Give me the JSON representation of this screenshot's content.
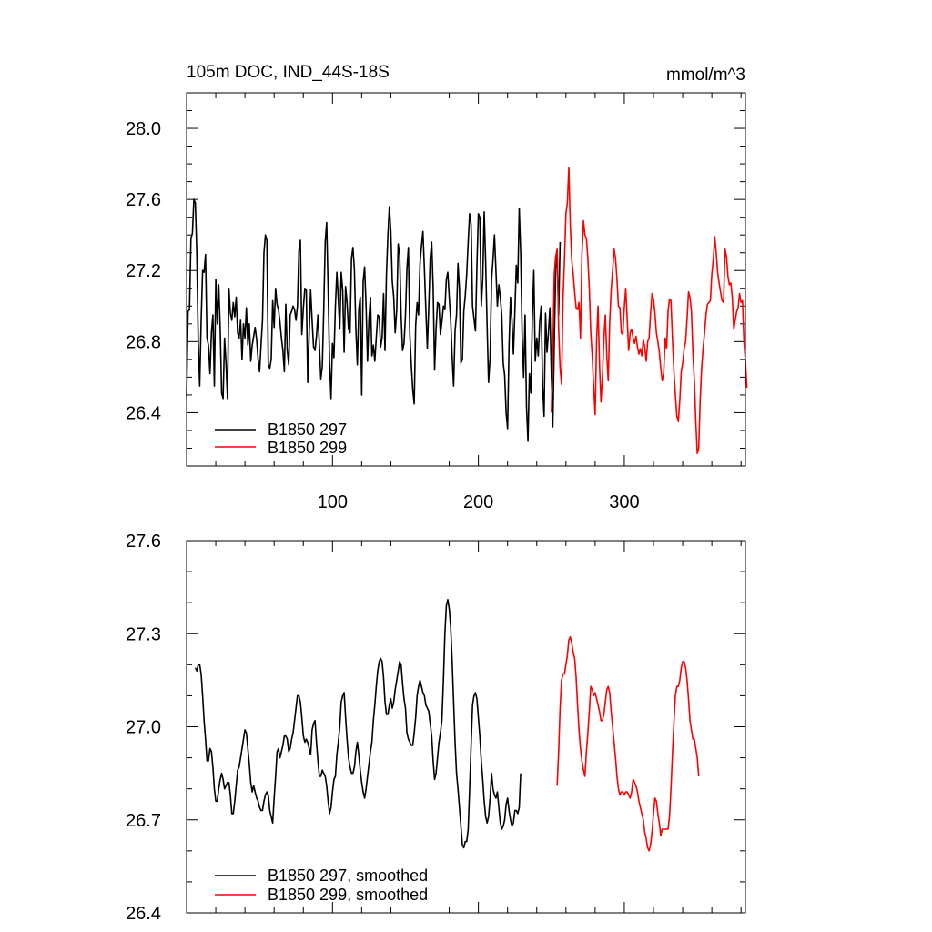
{
  "chart_data": [
    {
      "type": "line",
      "title": "105m DOC, IND_44S-18S",
      "units": "mmol/m^3",
      "xlim": [
        0,
        383
      ],
      "ylim": [
        26.1,
        28.2
      ],
      "x_ticks": [
        100,
        200,
        300
      ],
      "y_ticks": [
        26.4,
        26.8,
        27.2,
        27.6,
        28.0
      ],
      "y_tick_labels": [
        "26.4",
        "26.8",
        "27.2",
        "27.6",
        "28.0"
      ],
      "legend": "bottom-left",
      "series": [
        {
          "name": "B1850 297",
          "color": "#000000",
          "x_start": 0,
          "values": [
            26.49,
            26.97,
            26.98,
            27.38,
            27.41,
            27.6,
            27.58,
            27.3,
            26.8,
            26.55,
            26.92,
            27.2,
            27.19,
            27.29,
            26.82,
            26.78,
            26.62,
            26.85,
            26.95,
            26.55,
            27.15,
            26.9,
            27.12,
            26.88,
            26.51,
            26.48,
            26.82,
            26.68,
            26.48,
            27.1,
            26.96,
            26.92,
            27.02,
            26.94,
            27.05,
            26.85,
            26.82,
            26.92,
            26.7,
            26.9,
            26.82,
            26.99,
            26.78,
            26.9,
            26.69,
            26.78,
            26.83,
            26.88,
            26.81,
            26.7,
            26.63,
            26.78,
            26.92,
            27.3,
            27.4,
            27.37,
            26.67,
            26.65,
            26.7,
            27.03,
            26.88,
            27.1,
            27.01,
            26.98,
            26.91,
            26.82,
            26.75,
            26.63,
            27.01,
            26.75,
            26.67,
            26.95,
            26.97,
            27.0,
            26.98,
            26.92,
            27.0,
            27.31,
            27.37,
            26.84,
            26.99,
            27.1,
            27.09,
            26.57,
            26.85,
            27.09,
            26.92,
            26.77,
            26.75,
            26.83,
            26.95,
            26.78,
            26.59,
            26.66,
            26.98,
            27.36,
            27.47,
            27.1,
            26.68,
            26.48,
            26.79,
            26.71,
            27.0,
            27.19,
            27.04,
            26.87,
            27.19,
            27.09,
            26.74,
            27.11,
            27.02,
            26.87,
            26.85,
            27.27,
            27.33,
            27.2,
            26.87,
            26.67,
            26.98,
            27.05,
            26.5,
            27.14,
            27.22,
            27.0,
            26.69,
            26.93,
            27.05,
            26.72,
            26.78,
            26.69,
            26.82,
            26.95,
            26.94,
            26.77,
            26.82,
            27.07,
            26.75,
            27.18,
            27.4,
            27.56,
            27.42,
            27.14,
            27.05,
            26.85,
            26.98,
            27.35,
            27.29,
            26.95,
            26.75,
            26.79,
            26.95,
            27.21,
            27.33,
            26.84,
            26.67,
            26.53,
            26.45,
            26.89,
            27.02,
            26.95,
            27.24,
            27.34,
            27.42,
            27.21,
            26.98,
            26.76,
            27.0,
            27.27,
            27.36,
            27.11,
            26.64,
            26.87,
            27.02,
            27.01,
            26.84,
            26.91,
            27.0,
            26.98,
            27.15,
            27.19,
            27.05,
            26.92,
            26.71,
            26.55,
            26.86,
            26.95,
            27.24,
            27.1,
            26.68,
            26.7,
            26.97,
            27.06,
            27.18,
            27.36,
            27.52,
            27.46,
            27.0,
            26.93,
            26.86,
            27.22,
            27.52,
            27.5,
            27.0,
            27.15,
            27.53,
            27.25,
            26.89,
            26.57,
            26.71,
            27.15,
            27.26,
            27.4,
            27.2,
            27.0,
            27.12,
            27.05,
            26.95,
            26.68,
            26.61,
            26.4,
            26.31,
            26.78,
            27.05,
            26.92,
            26.73,
            26.97,
            27.23,
            27.13,
            27.55,
            27.3,
            26.84,
            26.6,
            26.95,
            26.43,
            26.24,
            26.62,
            26.51,
            26.93,
            27.2,
            26.69,
            26.82,
            26.72,
            26.91,
            27.0,
            26.55,
            26.38,
            26.96,
            26.74,
            26.85,
            26.99,
            26.61,
            26.32,
            26.79,
            27.21,
            27.29,
            26.95,
            27.36
          ]
        },
        {
          "name": "B1850 299",
          "color": "#ff0000",
          "x_start": 250,
          "values": [
            26.4,
            26.73,
            27.18,
            27.28,
            27.32,
            26.87,
            26.65,
            26.56,
            27.04,
            27.26,
            27.52,
            27.58,
            27.78,
            27.46,
            27.26,
            27.18,
            27.08,
            26.99,
            26.98,
            27.02,
            26.82,
            27.29,
            27.48,
            27.4,
            27.38,
            27.27,
            27.1,
            26.85,
            26.72,
            26.54,
            26.39,
            26.81,
            27.0,
            26.67,
            26.46,
            26.6,
            26.82,
            26.95,
            26.72,
            26.58,
            26.91,
            27.09,
            27.2,
            27.32,
            27.27,
            27.15,
            27.0,
            26.99,
            26.85,
            26.84,
            26.99,
            27.1,
            26.93,
            26.75,
            26.85,
            26.87,
            26.82,
            26.79,
            26.83,
            26.77,
            26.73,
            26.76,
            26.72,
            26.81,
            26.77,
            26.69,
            26.8,
            26.82,
            26.96,
            27.07,
            27.04,
            26.96,
            26.85,
            26.8,
            26.74,
            26.65,
            26.58,
            26.62,
            26.82,
            26.76,
            26.97,
            27.04,
            27.03,
            26.82,
            26.64,
            26.5,
            26.38,
            26.35,
            26.47,
            26.63,
            26.68,
            26.76,
            26.8,
            26.93,
            27.08,
            27.05,
            26.97,
            26.74,
            26.58,
            26.35,
            26.17,
            26.2,
            26.47,
            26.65,
            26.76,
            26.85,
            26.95,
            27.01,
            27.02,
            27.03,
            27.18,
            27.26,
            27.39,
            27.3,
            27.19,
            27.13,
            27.08,
            27.03,
            27.02,
            27.32,
            27.28,
            27.17,
            27.12,
            27.13,
            27.05,
            26.87,
            26.92,
            26.97,
            26.99,
            27.07,
            27.02,
            27.03,
            26.8,
            26.69,
            26.54
          ]
        }
      ]
    },
    {
      "type": "line",
      "xlim": [
        0,
        383
      ],
      "ylim": [
        26.4,
        27.6
      ],
      "x_ticks": [
        100,
        200,
        300
      ],
      "y_ticks": [
        26.4,
        26.7,
        27.0,
        27.3,
        27.6
      ],
      "y_tick_labels": [
        "26.4",
        "26.7",
        "27.0",
        "27.3",
        "27.6"
      ],
      "legend": "bottom-left",
      "series": [
        {
          "name": "B1850 297, smoothed",
          "color": "#000000",
          "x_start": 6,
          "values": [
            27.19,
            27.18,
            27.2,
            27.2,
            27.17,
            27.1,
            27.02,
            26.96,
            26.89,
            26.89,
            26.93,
            26.92,
            26.87,
            26.8,
            26.76,
            26.76,
            26.8,
            26.83,
            26.85,
            26.83,
            26.8,
            26.81,
            26.82,
            26.82,
            26.78,
            26.72,
            26.72,
            26.76,
            26.81,
            26.86,
            26.87,
            26.9,
            26.93,
            26.96,
            26.99,
            26.98,
            26.93,
            26.88,
            26.82,
            26.79,
            26.81,
            26.79,
            26.77,
            26.76,
            26.74,
            26.73,
            26.73,
            26.76,
            26.78,
            26.79,
            26.78,
            26.73,
            26.71,
            26.69,
            26.77,
            26.84,
            26.92,
            26.93,
            26.9,
            26.92,
            26.94,
            26.97,
            26.97,
            26.96,
            26.92,
            26.93,
            26.96,
            26.98,
            27.02,
            27.06,
            27.1,
            27.1,
            27.08,
            27.03,
            26.97,
            26.95,
            26.96,
            26.95,
            26.93,
            26.91,
            26.99,
            27.01,
            27.02,
            26.95,
            26.89,
            26.84,
            26.84,
            26.86,
            26.85,
            26.84,
            26.81,
            26.76,
            26.72,
            26.74,
            26.79,
            26.83,
            26.84,
            26.91,
            26.95,
            27.0,
            27.08,
            27.1,
            27.11,
            27.03,
            26.96,
            26.9,
            26.87,
            26.85,
            26.85,
            26.87,
            26.92,
            26.95,
            26.91,
            26.86,
            26.82,
            26.79,
            26.77,
            26.8,
            26.84,
            26.88,
            26.92,
            26.95,
            27.02,
            27.07,
            27.13,
            27.18,
            27.21,
            27.22,
            27.21,
            27.16,
            27.08,
            27.04,
            27.04,
            27.07,
            27.09,
            27.06,
            27.08,
            27.12,
            27.15,
            27.18,
            27.21,
            27.2,
            27.14,
            27.09,
            27.06,
            26.98,
            26.96,
            26.95,
            26.94,
            26.94,
            26.98,
            27.03,
            27.1,
            27.13,
            27.15,
            27.13,
            27.11,
            27.1,
            27.07,
            27.06,
            27.05,
            27.01,
            26.97,
            26.89,
            26.83,
            26.85,
            26.9,
            26.95,
            26.98,
            27.02,
            27.15,
            27.3,
            27.39,
            27.41,
            27.38,
            27.32,
            27.21,
            27.08,
            26.95,
            26.85,
            26.8,
            26.74,
            26.68,
            26.62,
            26.61,
            26.63,
            26.63,
            26.67,
            26.8,
            26.94,
            27.07,
            27.1,
            27.11,
            27.09,
            27.03,
            26.97,
            26.89,
            26.83,
            26.76,
            26.71,
            26.69,
            26.71,
            26.77,
            26.85,
            26.8,
            26.78,
            26.77,
            26.79,
            26.74,
            26.69,
            26.67,
            26.68,
            26.7,
            26.75,
            26.77,
            26.73,
            26.7,
            26.68,
            26.69,
            26.73,
            26.73,
            26.72,
            26.74,
            26.85
          ]
        },
        {
          "name": "B1850 299, smoothed",
          "color": "#ff0000",
          "x_start": 254,
          "values": [
            26.81,
            26.92,
            27.06,
            27.15,
            27.17,
            27.17,
            27.2,
            27.23,
            27.28,
            27.29,
            27.27,
            27.24,
            27.22,
            27.16,
            27.07,
            26.99,
            26.93,
            26.89,
            26.86,
            26.84,
            26.92,
            26.98,
            27.05,
            27.13,
            27.12,
            27.1,
            27.11,
            27.09,
            27.07,
            27.05,
            27.02,
            27.02,
            27.04,
            27.08,
            27.12,
            27.13,
            27.11,
            27.05,
            27.0,
            26.95,
            26.9,
            26.84,
            26.8,
            26.78,
            26.79,
            26.79,
            26.78,
            26.79,
            26.79,
            26.78,
            26.77,
            26.79,
            26.83,
            26.82,
            26.81,
            26.79,
            26.76,
            26.74,
            26.72,
            26.7,
            26.66,
            26.64,
            26.61,
            26.6,
            26.62,
            26.66,
            26.72,
            26.77,
            26.76,
            26.72,
            26.69,
            26.65,
            26.67,
            26.67,
            26.67,
            26.67,
            26.67,
            26.71,
            26.8,
            26.91,
            27.01,
            27.1,
            27.13,
            27.13,
            27.15,
            27.19,
            27.21,
            27.21,
            27.19,
            27.15,
            27.09,
            27.02,
            26.99,
            26.96,
            26.96,
            26.93,
            26.9,
            26.84
          ]
        }
      ]
    }
  ]
}
